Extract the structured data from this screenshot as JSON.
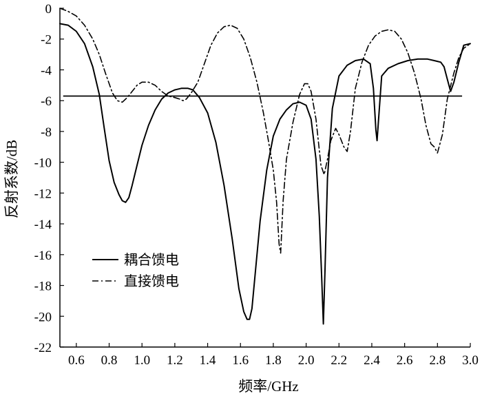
{
  "chart_data": {
    "type": "line",
    "title": "",
    "xlabel": "频率/GHz",
    "ylabel": "反射系数/dB",
    "xlim": [
      0.5,
      3.0
    ],
    "ylim": [
      -22,
      0
    ],
    "xticks": [
      "0.6",
      "0.8",
      "1.0",
      "1.2",
      "1.4",
      "1.6",
      "1.8",
      "2.0",
      "2.2",
      "2.4",
      "2.6",
      "2.8",
      "3.0"
    ],
    "yticks": [
      "0",
      "-2",
      "-4",
      "-6",
      "-8",
      "-10",
      "-12",
      "-14",
      "-16",
      "-18",
      "-20",
      "-22"
    ],
    "grid": false,
    "legend_position": "lower-left",
    "reference_line": {
      "y": -5.7
    },
    "series": [
      {
        "name": "耦合馈电",
        "style": "solid",
        "color": "#000000",
        "x": [
          0.5,
          0.55,
          0.6,
          0.65,
          0.7,
          0.74,
          0.77,
          0.8,
          0.83,
          0.86,
          0.88,
          0.9,
          0.92,
          0.94,
          0.97,
          1.0,
          1.04,
          1.08,
          1.12,
          1.16,
          1.2,
          1.24,
          1.28,
          1.31,
          1.35,
          1.4,
          1.45,
          1.5,
          1.55,
          1.59,
          1.62,
          1.64,
          1.655,
          1.67,
          1.69,
          1.72,
          1.76,
          1.8,
          1.84,
          1.88,
          1.92,
          1.96,
          2.0,
          2.03,
          2.06,
          2.08,
          2.095,
          2.105,
          2.115,
          2.13,
          2.16,
          2.2,
          2.25,
          2.3,
          2.35,
          2.39,
          2.41,
          2.425,
          2.432,
          2.44,
          2.46,
          2.5,
          2.56,
          2.62,
          2.68,
          2.74,
          2.78,
          2.82,
          2.84,
          2.86,
          2.88,
          2.9,
          2.93,
          2.96,
          3.0
        ],
        "values": [
          -1.0,
          -1.1,
          -1.5,
          -2.3,
          -3.8,
          -5.6,
          -7.8,
          -9.9,
          -11.3,
          -12.1,
          -12.5,
          -12.6,
          -12.3,
          -11.5,
          -10.2,
          -8.9,
          -7.6,
          -6.6,
          -5.9,
          -5.5,
          -5.3,
          -5.2,
          -5.2,
          -5.3,
          -5.8,
          -6.8,
          -8.7,
          -11.5,
          -15.0,
          -18.2,
          -19.7,
          -20.2,
          -20.2,
          -19.5,
          -17.2,
          -13.8,
          -10.5,
          -8.3,
          -7.2,
          -6.6,
          -6.2,
          -6.1,
          -6.3,
          -7.2,
          -9.8,
          -13.5,
          -17.5,
          -20.5,
          -17.0,
          -11.0,
          -6.5,
          -4.4,
          -3.7,
          -3.4,
          -3.3,
          -3.6,
          -5.2,
          -7.9,
          -8.6,
          -7.4,
          -4.4,
          -3.9,
          -3.6,
          -3.4,
          -3.3,
          -3.3,
          -3.4,
          -3.5,
          -3.8,
          -4.6,
          -5.4,
          -4.8,
          -3.5,
          -2.4,
          -2.3
        ]
      },
      {
        "name": "直接馈电",
        "style": "dash-dot",
        "color": "#000000",
        "x": [
          0.5,
          0.55,
          0.6,
          0.65,
          0.7,
          0.74,
          0.78,
          0.82,
          0.85,
          0.88,
          0.91,
          0.94,
          0.97,
          1.0,
          1.04,
          1.08,
          1.12,
          1.16,
          1.2,
          1.23,
          1.25,
          1.27,
          1.3,
          1.34,
          1.38,
          1.42,
          1.46,
          1.5,
          1.54,
          1.58,
          1.62,
          1.66,
          1.7,
          1.74,
          1.77,
          1.8,
          1.82,
          1.835,
          1.845,
          1.86,
          1.88,
          1.92,
          1.96,
          1.99,
          2.01,
          2.03,
          2.06,
          2.09,
          2.11,
          2.13,
          2.15,
          2.18,
          2.2,
          2.23,
          2.25,
          2.27,
          2.3,
          2.34,
          2.38,
          2.42,
          2.46,
          2.5,
          2.54,
          2.58,
          2.62,
          2.66,
          2.7,
          2.73,
          2.76,
          2.78,
          2.8,
          2.83,
          2.86,
          2.9,
          2.93,
          2.96,
          3.0
        ],
        "values": [
          0.0,
          -0.2,
          -0.5,
          -1.1,
          -2.0,
          -3.0,
          -4.3,
          -5.5,
          -6.0,
          -6.1,
          -5.8,
          -5.4,
          -5.0,
          -4.8,
          -4.8,
          -5.0,
          -5.4,
          -5.7,
          -5.8,
          -5.9,
          -6.0,
          -5.9,
          -5.5,
          -4.8,
          -3.6,
          -2.4,
          -1.6,
          -1.2,
          -1.1,
          -1.3,
          -2.0,
          -3.2,
          -4.8,
          -6.8,
          -8.6,
          -10.5,
          -12.6,
          -15.3,
          -15.9,
          -12.5,
          -9.8,
          -7.4,
          -5.6,
          -4.9,
          -4.9,
          -5.4,
          -7.2,
          -10.2,
          -10.8,
          -9.8,
          -8.6,
          -7.8,
          -8.2,
          -9.0,
          -9.3,
          -8.0,
          -5.2,
          -3.5,
          -2.4,
          -1.8,
          -1.5,
          -1.4,
          -1.5,
          -2.0,
          -2.9,
          -4.2,
          -5.9,
          -7.6,
          -8.8,
          -9.0,
          -9.4,
          -8.2,
          -5.9,
          -4.2,
          -3.2,
          -2.6,
          -2.3
        ]
      }
    ]
  }
}
